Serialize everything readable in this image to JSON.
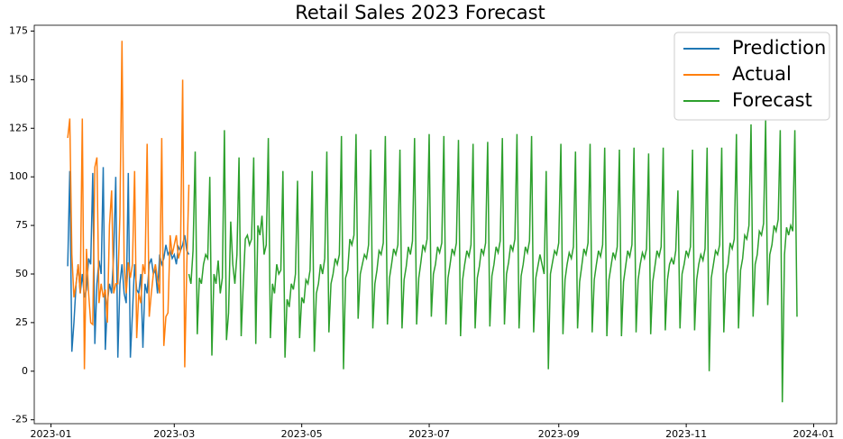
{
  "chart_data": {
    "type": "line",
    "title": "Retail Sales 2023 Forecast",
    "xlim": [
      -8,
      376
    ],
    "ylim": [
      -27,
      178
    ],
    "xticks": [
      {
        "value": 0,
        "label": "2023-01"
      },
      {
        "value": 59,
        "label": "2023-03"
      },
      {
        "value": 120,
        "label": "2023-05"
      },
      {
        "value": 181,
        "label": "2023-07"
      },
      {
        "value": 243,
        "label": "2023-09"
      },
      {
        "value": 304,
        "label": "2023-11"
      },
      {
        "value": 365,
        "label": "2024-01"
      }
    ],
    "yticks": [
      -25,
      0,
      25,
      50,
      75,
      100,
      125,
      150,
      175
    ],
    "legend": "upper right",
    "series": [
      {
        "name": "Prediction",
        "color": "#1f77b4",
        "x": [
          8,
          9,
          10,
          11,
          12,
          13,
          14,
          15,
          16,
          17,
          18,
          19,
          20,
          21,
          22,
          23,
          24,
          25,
          26,
          27,
          28,
          29,
          30,
          31,
          32,
          33,
          34,
          35,
          36,
          37,
          38,
          39,
          40,
          41,
          42,
          43,
          44,
          45,
          46,
          47,
          48,
          49,
          50,
          51,
          52,
          53,
          54,
          55,
          56,
          57,
          58,
          59,
          60,
          61,
          62,
          63,
          64,
          65,
          66
        ],
        "values": [
          54,
          103,
          10,
          25,
          45,
          55,
          40,
          50,
          38,
          42,
          58,
          55,
          102,
          14,
          45,
          57,
          50,
          105,
          11,
          35,
          45,
          40,
          60,
          100,
          7,
          45,
          55,
          40,
          35,
          102,
          7,
          30,
          55,
          42,
          40,
          50,
          12,
          45,
          40,
          55,
          58,
          50,
          52,
          40,
          60,
          55,
          58,
          65,
          60,
          62,
          58,
          60,
          55,
          64,
          62,
          65,
          70,
          62,
          60
        ]
      },
      {
        "name": "Actual",
        "color": "#ff7f0e",
        "x": [
          8,
          9,
          10,
          11,
          12,
          13,
          14,
          15,
          16,
          17,
          18,
          19,
          20,
          21,
          22,
          23,
          24,
          25,
          26,
          27,
          28,
          29,
          30,
          31,
          32,
          33,
          34,
          35,
          36,
          37,
          38,
          39,
          40,
          41,
          42,
          43,
          44,
          45,
          46,
          47,
          48,
          49,
          50,
          51,
          52,
          53,
          54,
          55,
          56,
          57,
          58,
          59,
          60,
          61,
          62,
          63,
          64,
          65,
          66
        ],
        "values": [
          120,
          130,
          60,
          38,
          45,
          55,
          40,
          130,
          1,
          63,
          40,
          25,
          24,
          105,
          110,
          35,
          45,
          38,
          42,
          25,
          75,
          93,
          40,
          45,
          45,
          80,
          170,
          55,
          40,
          56,
          48,
          55,
          103,
          17,
          40,
          35,
          55,
          50,
          117,
          28,
          40,
          50,
          55,
          47,
          40,
          120,
          13,
          28,
          30,
          70,
          60,
          65,
          70,
          58,
          62,
          150,
          2,
          55,
          96
        ]
      },
      {
        "name": "Forecast",
        "color": "#2ca02c",
        "x": [
          66,
          67,
          68,
          69,
          70,
          71,
          72,
          73,
          74,
          75,
          76,
          77,
          78,
          79,
          80,
          81,
          82,
          83,
          84,
          85,
          86,
          87,
          88,
          89,
          90,
          91,
          92,
          93,
          94,
          95,
          96,
          97,
          98,
          99,
          100,
          101,
          102,
          103,
          104,
          105,
          106,
          107,
          108,
          109,
          110,
          111,
          112,
          113,
          114,
          115,
          116,
          117,
          118,
          119,
          120,
          121,
          122,
          123,
          124,
          125,
          126,
          127,
          128,
          129,
          130,
          131,
          132,
          133,
          134,
          135,
          136,
          137,
          138,
          139,
          140,
          141,
          142,
          143,
          144,
          145,
          146,
          147,
          148,
          149,
          150,
          151,
          152,
          153,
          154,
          155,
          156,
          157,
          158,
          159,
          160,
          161,
          162,
          163,
          164,
          165,
          166,
          167,
          168,
          169,
          170,
          171,
          172,
          173,
          174,
          175,
          176,
          177,
          178,
          179,
          180,
          181,
          182,
          183,
          184,
          185,
          186,
          187,
          188,
          189,
          190,
          191,
          192,
          193,
          194,
          195,
          196,
          197,
          198,
          199,
          200,
          201,
          202,
          203,
          204,
          205,
          206,
          207,
          208,
          209,
          210,
          211,
          212,
          213,
          214,
          215,
          216,
          217,
          218,
          219,
          220,
          221,
          222,
          223,
          224,
          225,
          226,
          227,
          228,
          229,
          230,
          231,
          232,
          233,
          234,
          235,
          236,
          237,
          238,
          239,
          240,
          241,
          242,
          243,
          244,
          245,
          246,
          247,
          248,
          249,
          250,
          251,
          252,
          253,
          254,
          255,
          256,
          257,
          258,
          259,
          260,
          261,
          262,
          263,
          264,
          265,
          266,
          267,
          268,
          269,
          270,
          271,
          272,
          273,
          274,
          275,
          276,
          277,
          278,
          279,
          280,
          281,
          282,
          283,
          284,
          285,
          286,
          287,
          288,
          289,
          290,
          291,
          292,
          293,
          294,
          295,
          296,
          297,
          298,
          299,
          300,
          301,
          302,
          303,
          304,
          305,
          306,
          307,
          308,
          309,
          310,
          311,
          312,
          313,
          314,
          315,
          316,
          317,
          318,
          319,
          320,
          321,
          322,
          323,
          324,
          325,
          326,
          327,
          328,
          329,
          330,
          331,
          332,
          333,
          334,
          335,
          336,
          337,
          338,
          339,
          340,
          341,
          342,
          343,
          344,
          345,
          346,
          347,
          348,
          349,
          350,
          351,
          352,
          353,
          354,
          355,
          356,
          357
        ],
        "values": [
          50,
          45,
          62,
          113,
          19,
          48,
          45,
          55,
          60,
          58,
          100,
          8,
          50,
          45,
          57,
          40,
          48,
          124,
          16,
          30,
          77,
          55,
          45,
          60,
          110,
          18,
          45,
          68,
          70,
          65,
          68,
          110,
          14,
          75,
          70,
          80,
          60,
          65,
          120,
          17,
          45,
          40,
          55,
          50,
          52,
          103,
          7,
          37,
          33,
          45,
          42,
          50,
          98,
          17,
          38,
          35,
          47,
          45,
          52,
          103,
          10,
          40,
          45,
          55,
          50,
          58,
          113,
          20,
          45,
          50,
          58,
          55,
          60,
          121,
          1,
          48,
          52,
          68,
          65,
          70,
          122,
          27,
          50,
          55,
          60,
          58,
          65,
          114,
          22,
          45,
          52,
          62,
          60,
          66,
          121,
          24,
          48,
          55,
          63,
          60,
          65,
          114,
          22,
          47,
          54,
          64,
          60,
          67,
          120,
          24,
          48,
          56,
          65,
          62,
          68,
          122,
          28,
          50,
          55,
          64,
          61,
          66,
          121,
          24,
          48,
          55,
          63,
          60,
          66,
          119,
          18,
          47,
          55,
          62,
          59,
          65,
          117,
          22,
          48,
          54,
          63,
          60,
          66,
          118,
          23,
          49,
          55,
          64,
          61,
          67,
          120,
          24,
          50,
          56,
          65,
          62,
          68,
          122,
          22,
          49,
          55,
          64,
          61,
          67,
          121,
          20,
          48,
          54,
          60,
          55,
          50,
          103,
          1,
          50,
          56,
          62,
          60,
          66,
          117,
          19,
          47,
          55,
          61,
          58,
          64,
          113,
          22,
          46,
          54,
          63,
          60,
          66,
          117,
          20,
          47,
          55,
          62,
          59,
          65,
          115,
          18,
          47,
          54,
          61,
          58,
          64,
          114,
          18,
          46,
          54,
          62,
          59,
          65,
          115,
          20,
          47,
          55,
          61,
          58,
          63,
          112,
          19,
          46,
          54,
          62,
          59,
          64,
          115,
          21,
          47,
          55,
          58,
          55,
          62,
          93,
          22,
          50,
          55,
          62,
          59,
          64,
          114,
          21,
          47,
          55,
          60,
          57,
          63,
          115,
          0,
          48,
          55,
          62,
          60,
          65,
          115,
          20,
          50,
          55,
          66,
          63,
          68,
          122,
          22,
          52,
          58,
          70,
          68,
          75,
          127,
          28,
          55,
          60,
          72,
          70,
          76,
          129,
          34,
          60,
          65,
          75,
          72,
          78,
          124,
          -16,
          60,
          74,
          70,
          75,
          72,
          124,
          28
        ]
      }
    ]
  }
}
